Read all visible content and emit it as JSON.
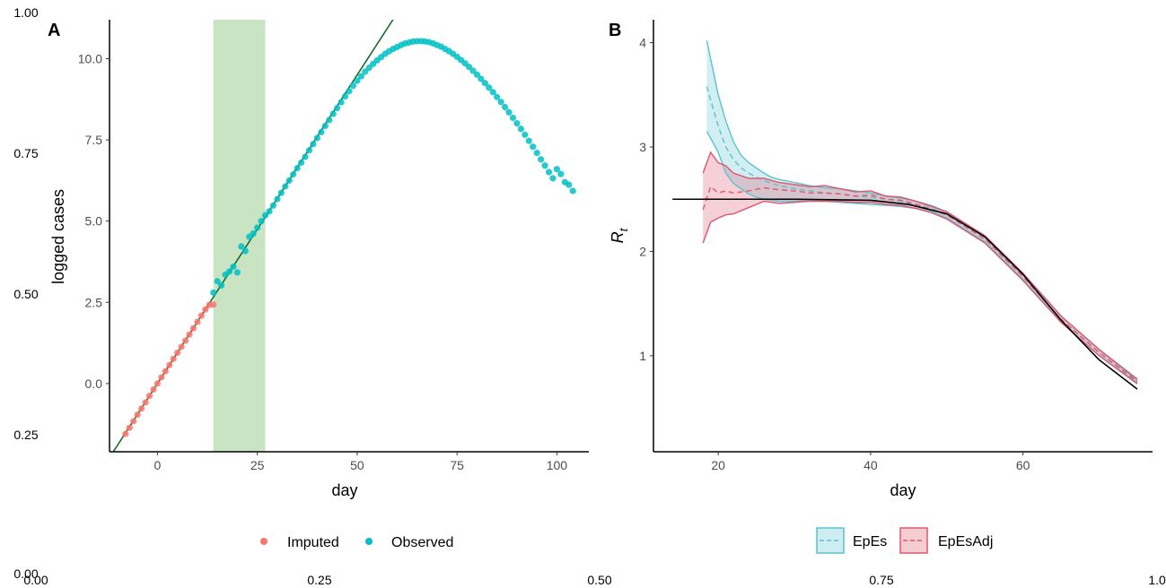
{
  "outer_axis": {
    "x_ticks": [
      "0.00",
      "0.25",
      "0.50",
      "0.75",
      "1.00"
    ],
    "y_ticks": [
      "0.00",
      "0.25",
      "0.50",
      "0.75",
      "1.00"
    ]
  },
  "colors": {
    "imputed": "#F8766D",
    "observed": "#00BFC4",
    "fit_line": "#1B6B2E",
    "window": "#C9E4C2",
    "epes": "#5BC2CF",
    "epesadj": "#E0566E",
    "truth": "#000000"
  },
  "chart_data": [
    {
      "panel": "A",
      "type": "scatter",
      "xlabel": "day",
      "ylabel": "logged cases",
      "xlim": [
        -12,
        108
      ],
      "ylim": [
        -2.1,
        11.2
      ],
      "x_ticks": [
        0,
        25,
        50,
        75,
        100
      ],
      "y_ticks": [
        0.0,
        2.5,
        5.0,
        7.5,
        10.0
      ],
      "y_tick_labels": [
        "0.0",
        "2.5",
        "5.0",
        "7.5",
        "10.0"
      ],
      "shaded_window": [
        14,
        27
      ],
      "fit_line": {
        "intercept": 0.0,
        "slope": 0.19
      },
      "grid": false,
      "legend_position": "bottom",
      "series": [
        {
          "name": "Imputed",
          "x": [
            -8,
            -7,
            -6,
            -5,
            -4,
            -3,
            -2,
            -1,
            0,
            1,
            2,
            3,
            4,
            5,
            6,
            7,
            8,
            9,
            10,
            11,
            12,
            13,
            14
          ],
          "y": [
            -1.55,
            -1.36,
            -1.16,
            -0.96,
            -0.77,
            -0.58,
            -0.38,
            -0.18,
            0.0,
            0.19,
            0.38,
            0.57,
            0.76,
            0.95,
            1.13,
            1.32,
            1.51,
            1.7,
            1.9,
            2.09,
            2.28,
            2.42,
            2.43
          ]
        },
        {
          "name": "Observed",
          "x": [
            14,
            15,
            16,
            17,
            18,
            19,
            20,
            21,
            22,
            23,
            24,
            25,
            26,
            27,
            28,
            29,
            30,
            31,
            32,
            33,
            34,
            35,
            36,
            37,
            38,
            39,
            40,
            41,
            42,
            43,
            44,
            45,
            46,
            47,
            48,
            49,
            50,
            51,
            52,
            53,
            54,
            55,
            56,
            57,
            58,
            59,
            60,
            61,
            62,
            63,
            64,
            65,
            66,
            67,
            68,
            69,
            70,
            71,
            72,
            73,
            74,
            75,
            76,
            77,
            78,
            79,
            80,
            81,
            82,
            83,
            84,
            85,
            86,
            87,
            88,
            89,
            90,
            91,
            92,
            93,
            94,
            95,
            96,
            97,
            98,
            99,
            100,
            101,
            102,
            103,
            104
          ],
          "y": [
            2.8,
            3.15,
            3.02,
            3.35,
            3.45,
            3.6,
            3.42,
            4.22,
            4.08,
            4.52,
            4.62,
            4.8,
            5.0,
            5.18,
            5.3,
            5.48,
            5.68,
            5.87,
            6.07,
            6.25,
            6.44,
            6.63,
            6.8,
            6.98,
            7.18,
            7.37,
            7.56,
            7.74,
            7.93,
            8.11,
            8.3,
            8.48,
            8.66,
            8.84,
            9.0,
            9.17,
            9.32,
            9.46,
            9.6,
            9.72,
            9.84,
            9.95,
            10.05,
            10.15,
            10.23,
            10.3,
            10.36,
            10.42,
            10.47,
            10.5,
            10.53,
            10.54,
            10.54,
            10.53,
            10.51,
            10.47,
            10.42,
            10.37,
            10.3,
            10.23,
            10.15,
            10.06,
            9.96,
            9.86,
            9.75,
            9.63,
            9.51,
            9.38,
            9.25,
            9.11,
            8.97,
            8.82,
            8.67,
            8.51,
            8.35,
            8.18,
            8.01,
            7.84,
            7.66,
            7.47,
            7.29,
            7.1,
            6.9,
            6.71,
            6.51,
            6.32,
            6.6,
            6.45,
            6.2,
            6.12,
            5.93
          ]
        }
      ]
    },
    {
      "panel": "B",
      "type": "line",
      "xlabel": "day",
      "ylabel": "R",
      "ylabel_sub": "t",
      "xlim": [
        11.5,
        77
      ],
      "ylim": [
        0.08,
        4.22
      ],
      "x_ticks": [
        20,
        40,
        60
      ],
      "y_ticks": [
        1,
        2,
        3,
        4
      ],
      "grid": false,
      "legend_position": "bottom",
      "truth": {
        "x": [
          14,
          20,
          30,
          40,
          45,
          50,
          55,
          60,
          65,
          70,
          75
        ],
        "y": [
          2.5,
          2.5,
          2.5,
          2.49,
          2.45,
          2.36,
          2.14,
          1.78,
          1.34,
          0.96,
          0.68
        ]
      },
      "series": [
        {
          "name": "EpEs",
          "x": [
            18.5,
            20,
            21,
            22,
            23,
            24,
            25,
            26,
            27,
            28,
            30,
            32,
            34,
            36,
            38,
            40,
            42,
            44,
            46,
            48,
            50,
            55,
            60,
            65,
            70,
            75
          ],
          "mean": [
            3.58,
            3.2,
            3.0,
            2.88,
            2.8,
            2.75,
            2.71,
            2.68,
            2.65,
            2.63,
            2.6,
            2.58,
            2.56,
            2.55,
            2.53,
            2.52,
            2.5,
            2.48,
            2.45,
            2.41,
            2.35,
            2.12,
            1.76,
            1.35,
            1.03,
            0.76
          ],
          "upper": [
            4.02,
            3.5,
            3.25,
            3.05,
            2.92,
            2.85,
            2.8,
            2.75,
            2.71,
            2.69,
            2.66,
            2.63,
            2.61,
            2.6,
            2.58,
            2.56,
            2.53,
            2.51,
            2.48,
            2.44,
            2.38,
            2.15,
            1.79,
            1.38,
            1.06,
            0.78
          ],
          "lower": [
            3.15,
            2.95,
            2.75,
            2.65,
            2.6,
            2.55,
            2.52,
            2.5,
            2.49,
            2.48,
            2.48,
            2.48,
            2.48,
            2.47,
            2.46,
            2.45,
            2.44,
            2.43,
            2.41,
            2.38,
            2.32,
            2.09,
            1.73,
            1.32,
            1.0,
            0.74
          ]
        },
        {
          "name": "EpEsAdj",
          "x": [
            18,
            19,
            20,
            21,
            22,
            24,
            26,
            28,
            30,
            32,
            34,
            36,
            38,
            40,
            42,
            44,
            46,
            48,
            50,
            55,
            60,
            65,
            70,
            75
          ],
          "mean": [
            2.4,
            2.62,
            2.56,
            2.58,
            2.56,
            2.58,
            2.61,
            2.59,
            2.58,
            2.56,
            2.56,
            2.55,
            2.53,
            2.54,
            2.5,
            2.49,
            2.45,
            2.4,
            2.35,
            2.12,
            1.76,
            1.35,
            1.03,
            0.75
          ],
          "upper": [
            2.75,
            2.95,
            2.85,
            2.82,
            2.75,
            2.7,
            2.7,
            2.66,
            2.64,
            2.62,
            2.63,
            2.6,
            2.57,
            2.58,
            2.53,
            2.52,
            2.48,
            2.43,
            2.38,
            2.15,
            1.79,
            1.38,
            1.06,
            0.77
          ],
          "lower": [
            2.08,
            2.28,
            2.32,
            2.35,
            2.36,
            2.42,
            2.48,
            2.46,
            2.47,
            2.48,
            2.48,
            2.48,
            2.47,
            2.47,
            2.45,
            2.44,
            2.41,
            2.37,
            2.31,
            2.08,
            1.72,
            1.32,
            1.0,
            0.73
          ]
        }
      ]
    }
  ]
}
